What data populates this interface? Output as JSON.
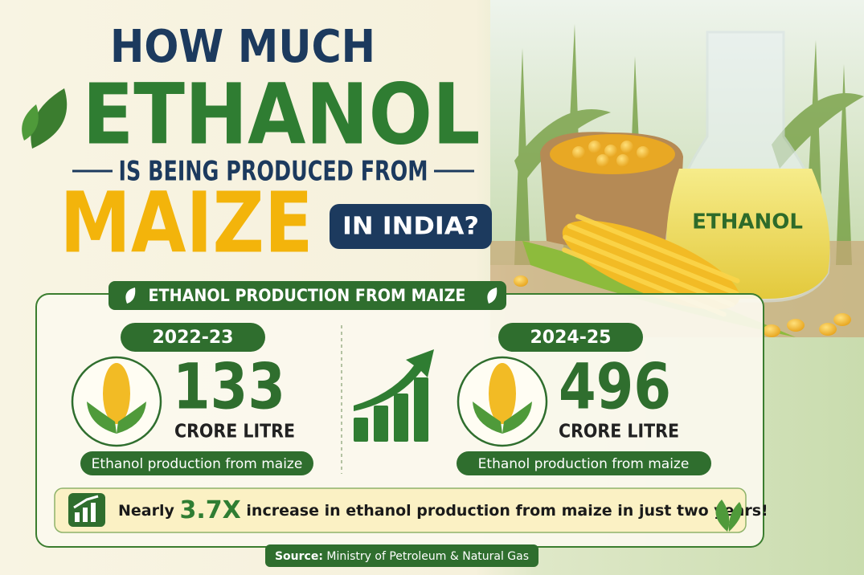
{
  "title": {
    "line1": "HOW MUCH",
    "line2": "ETHANOL",
    "line3": "IS BEING PRODUCED FROM",
    "line4": "MAIZE",
    "badge": "IN INDIA?"
  },
  "flask_label": "ETHANOL",
  "panel": {
    "header": "ETHANOL PRODUCTION FROM MAIZE",
    "left": {
      "year": "2022-23",
      "value": 133,
      "unit": "CRORE LITRE",
      "caption": "Ethanol production from maize"
    },
    "right": {
      "year": "2024-25",
      "value": 496,
      "unit": "CRORE LITRE",
      "caption": "Ethanol production from maize"
    },
    "callout": {
      "prefix": "Nearly",
      "highlight": "3.7X",
      "text": "increase in ethanol production from maize in just two years!"
    }
  },
  "source": {
    "label": "Source:",
    "text": "Ministry of Petroleum & Natural Gas"
  }
}
